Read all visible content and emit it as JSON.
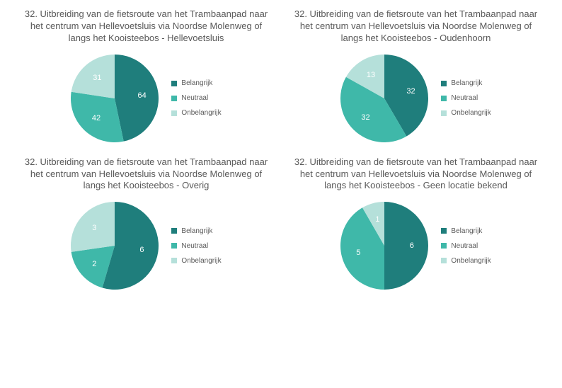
{
  "colors": {
    "belangrijk": "#1f7e7c",
    "neutraal": "#3fb8a9",
    "onbelangrijk": "#b5e0da",
    "title_text": "#595959",
    "label_text": "#ffffff",
    "background": "#ffffff"
  },
  "legend_labels": {
    "belangrijk": "Belangrijk",
    "neutraal": "Neutraal",
    "onbelangrijk": "Onbelangrijk"
  },
  "chart": {
    "type": "pie",
    "radius": 62,
    "label_fontsize": 11,
    "title_fontsize": 13,
    "legend_fontsize": 10,
    "label_radius_factor": 0.62,
    "start_angle_deg": -90,
    "direction": "clockwise"
  },
  "panels": [
    {
      "title": "32. Uitbreiding van de fietsroute van het Trambaanpad naar het centrum van Hellevoetsluis via Noordse Molenweg of langs het Kooisteebos - Hellevoetsluis",
      "slices": [
        {
          "key": "belangrijk",
          "value": 64
        },
        {
          "key": "neutraal",
          "value": 42
        },
        {
          "key": "onbelangrijk",
          "value": 31
        }
      ]
    },
    {
      "title": "32. Uitbreiding van de fietsroute van het Trambaanpad naar het centrum van Hellevoetsluis via Noordse Molenweg of langs het Kooisteebos - Oudenhoorn",
      "slices": [
        {
          "key": "belangrijk",
          "value": 32
        },
        {
          "key": "neutraal",
          "value": 32
        },
        {
          "key": "onbelangrijk",
          "value": 13
        }
      ]
    },
    {
      "title": "32. Uitbreiding van de fietsroute van het Trambaanpad naar het centrum van Hellevoetsluis via Noordse Molenweg of langs het Kooisteebos - Overig",
      "slices": [
        {
          "key": "belangrijk",
          "value": 6
        },
        {
          "key": "neutraal",
          "value": 2
        },
        {
          "key": "onbelangrijk",
          "value": 3
        }
      ]
    },
    {
      "title": "32. Uitbreiding van de fietsroute van het Trambaanpad naar het centrum van Hellevoetsluis via Noordse Molenweg of langs het Kooisteebos - Geen locatie bekend",
      "slices": [
        {
          "key": "belangrijk",
          "value": 6
        },
        {
          "key": "neutraal",
          "value": 5
        },
        {
          "key": "onbelangrijk",
          "value": 1
        }
      ]
    }
  ]
}
